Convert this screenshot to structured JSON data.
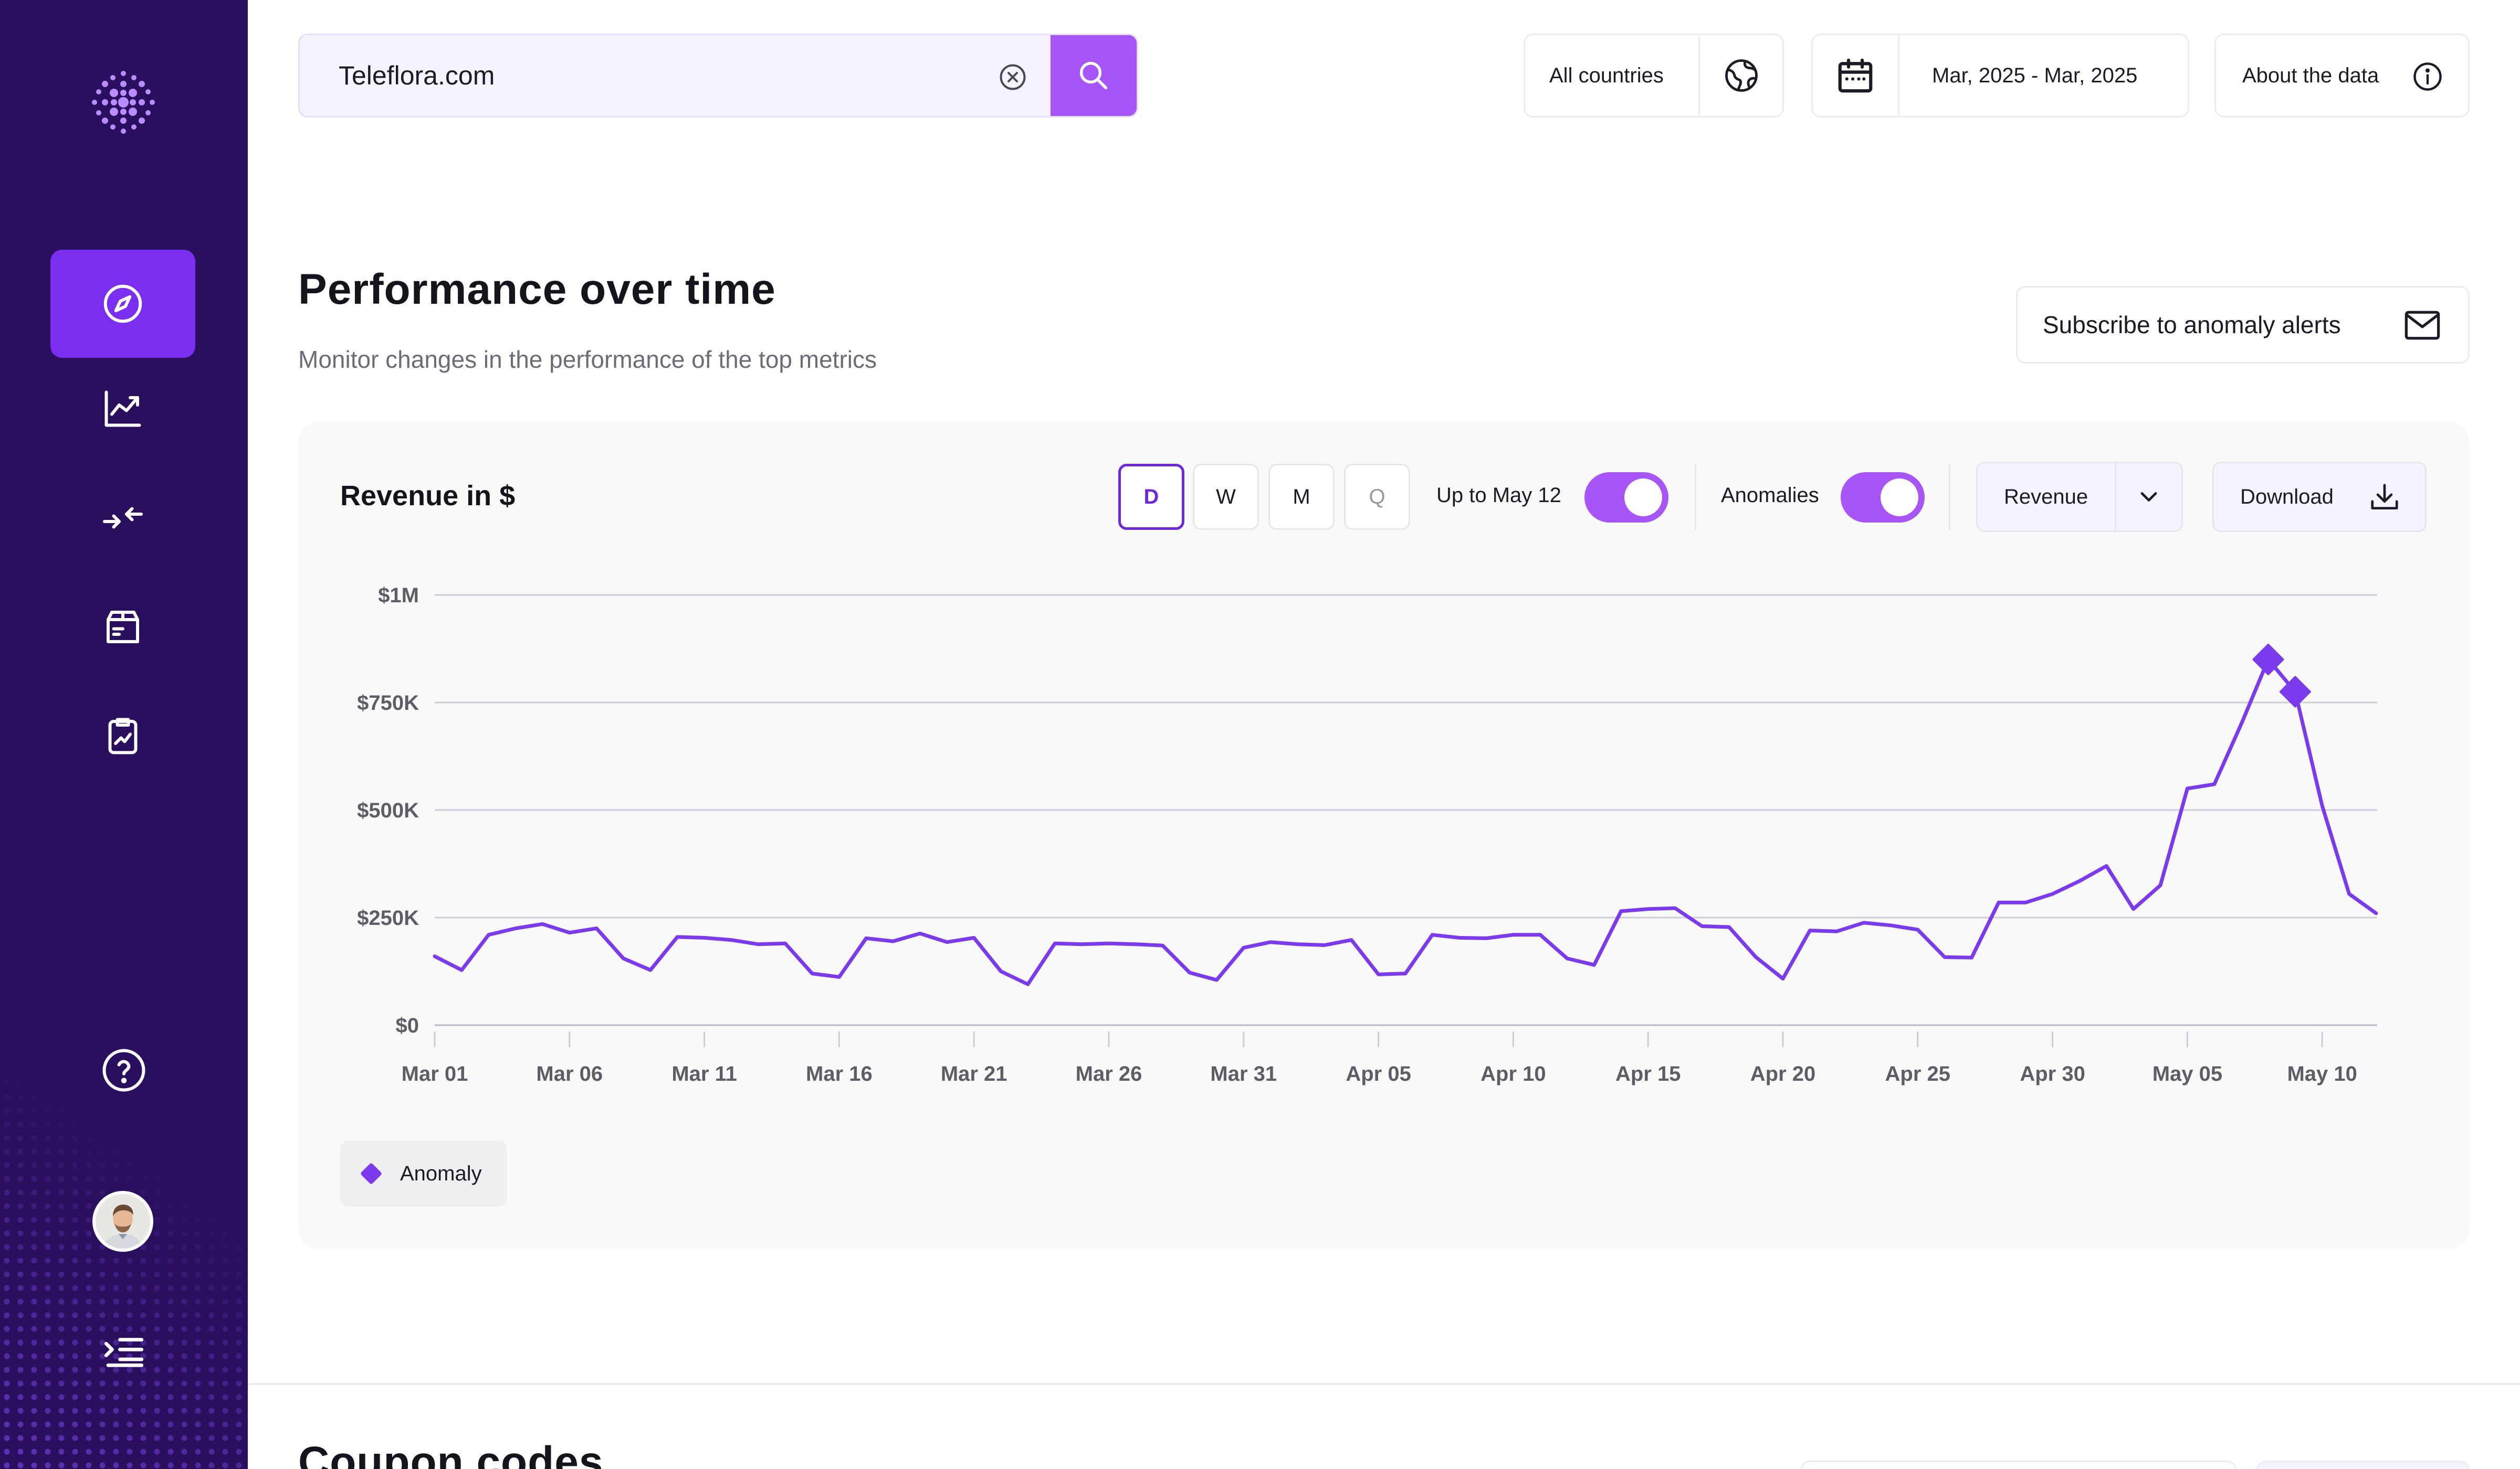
{
  "search": {
    "value": "Teleflora.com"
  },
  "filters": {
    "country": "All countries",
    "date_range": "Mar, 2025 - Mar, 2025",
    "about": "About the data"
  },
  "section": {
    "title": "Performance over time",
    "subtitle": "Monitor changes in the performance of the top metrics",
    "alert_button": "Subscribe to anomaly alerts"
  },
  "chart_card": {
    "title": "Revenue in $",
    "granularity": [
      "D",
      "W",
      "M",
      "Q"
    ],
    "up_to_label": "Up to May 12",
    "anomalies_label": "Anomalies",
    "metric_select": "Revenue",
    "download_label": "Download",
    "legend_label": "Anomaly"
  },
  "colors": {
    "sidebar": "#2a0f5e",
    "accent": "#a855f7",
    "line": "#7c3aed",
    "active_nav": "#7a2ef0"
  },
  "chart_data": {
    "type": "line",
    "ylabel_ticks": [
      "$0",
      "$250K",
      "$500K",
      "$750K",
      "$1M"
    ],
    "ylim": [
      0,
      1000000
    ],
    "x_tick_labels": [
      "Mar 01",
      "Mar 06",
      "Mar 11",
      "Mar 16",
      "Mar 21",
      "Mar 26",
      "Mar 31",
      "Apr 05",
      "Apr 10",
      "Apr 15",
      "Apr 20",
      "Apr 25",
      "Apr 30",
      "May 05",
      "May 10"
    ],
    "x_tick_every": 5,
    "x": [
      "Mar 01",
      "Mar 02",
      "Mar 03",
      "Mar 04",
      "Mar 05",
      "Mar 06",
      "Mar 07",
      "Mar 08",
      "Mar 09",
      "Mar 10",
      "Mar 11",
      "Mar 12",
      "Mar 13",
      "Mar 14",
      "Mar 15",
      "Mar 16",
      "Mar 17",
      "Mar 18",
      "Mar 19",
      "Mar 20",
      "Mar 21",
      "Mar 22",
      "Mar 23",
      "Mar 24",
      "Mar 25",
      "Mar 26",
      "Mar 27",
      "Mar 28",
      "Mar 29",
      "Mar 30",
      "Mar 31",
      "Apr 01",
      "Apr 02",
      "Apr 03",
      "Apr 04",
      "Apr 05",
      "Apr 06",
      "Apr 07",
      "Apr 08",
      "Apr 09",
      "Apr 10",
      "Apr 11",
      "Apr 12",
      "Apr 13",
      "Apr 14",
      "Apr 15",
      "Apr 16",
      "Apr 17",
      "Apr 18",
      "Apr 19",
      "Apr 20",
      "Apr 21",
      "Apr 22",
      "Apr 23",
      "Apr 24",
      "Apr 25",
      "Apr 26",
      "Apr 27",
      "Apr 28",
      "Apr 29",
      "Apr 30",
      "May 01",
      "May 02",
      "May 03",
      "May 04",
      "May 05",
      "May 06",
      "May 07",
      "May 08",
      "May 09",
      "May 10",
      "May 11",
      "May 12"
    ],
    "series": [
      {
        "values": [
          160000,
          128000,
          210000,
          225000,
          235000,
          215000,
          225000,
          155000,
          128000,
          205000,
          203000,
          198000,
          188000,
          190000,
          120000,
          112000,
          202000,
          195000,
          213000,
          193000,
          203000,
          125000,
          95000,
          190000,
          188000,
          190000,
          188000,
          185000,
          122000,
          105000,
          180000,
          193000,
          188000,
          186000,
          198000,
          118000,
          120000,
          210000,
          203000,
          202000,
          210000,
          210000,
          155000,
          140000,
          265000,
          270000,
          272000,
          230000,
          228000,
          158000,
          108000,
          220000,
          218000,
          238000,
          232000,
          222000,
          158000,
          157000,
          285000,
          285000,
          305000,
          335000,
          370000,
          270000,
          325000,
          550000,
          560000,
          700000,
          850000,
          775000,
          510000,
          305000,
          260000
        ],
        "anomalies": [
          68,
          69
        ]
      }
    ]
  },
  "next_section": {
    "title": "Coupon codes"
  }
}
